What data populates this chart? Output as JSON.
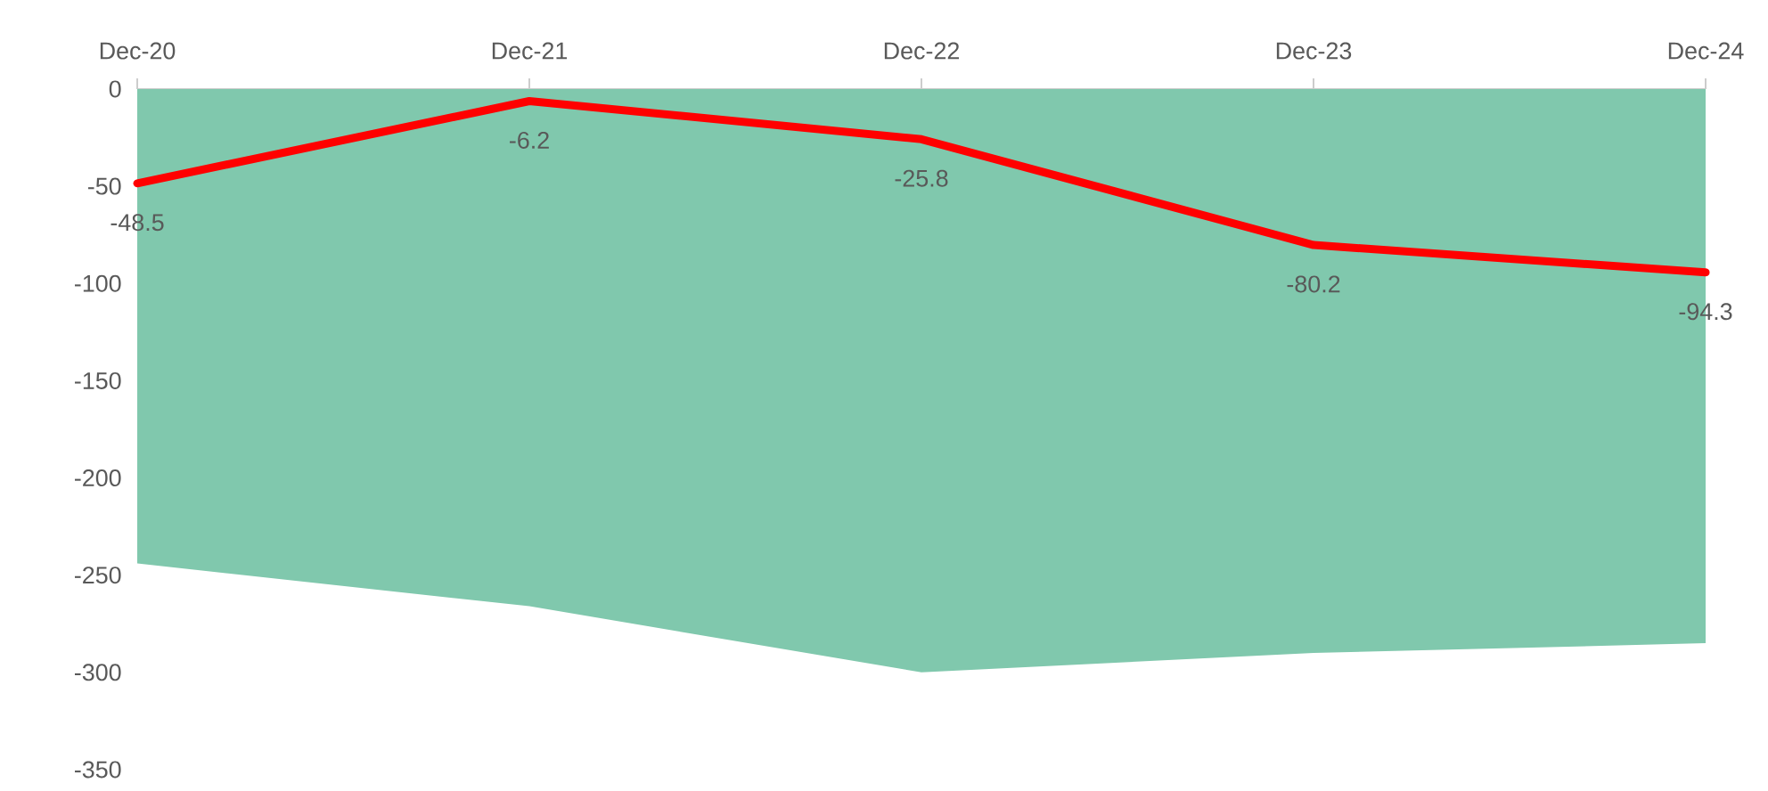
{
  "chart_data": {
    "type": "line",
    "categories": [
      "Dec-20",
      "Dec-21",
      "Dec-22",
      "Dec-23",
      "Dec-24"
    ],
    "ylim": [
      -350,
      0
    ],
    "yticks": [
      -350,
      -300,
      -250,
      -200,
      -150,
      -100,
      -50,
      0
    ],
    "series": [
      {
        "type": "area",
        "color": "#80c8ad",
        "values": [
          -244,
          -266,
          -300,
          -290,
          -285
        ]
      },
      {
        "color": "#ff0000",
        "values": [
          -48.5,
          -6.2,
          -25.8,
          -80.2,
          -94.3
        ],
        "value_labels": [
          "-48.5",
          "-6.2",
          "-25.8",
          "-80.2",
          "-94.3"
        ]
      }
    ]
  }
}
